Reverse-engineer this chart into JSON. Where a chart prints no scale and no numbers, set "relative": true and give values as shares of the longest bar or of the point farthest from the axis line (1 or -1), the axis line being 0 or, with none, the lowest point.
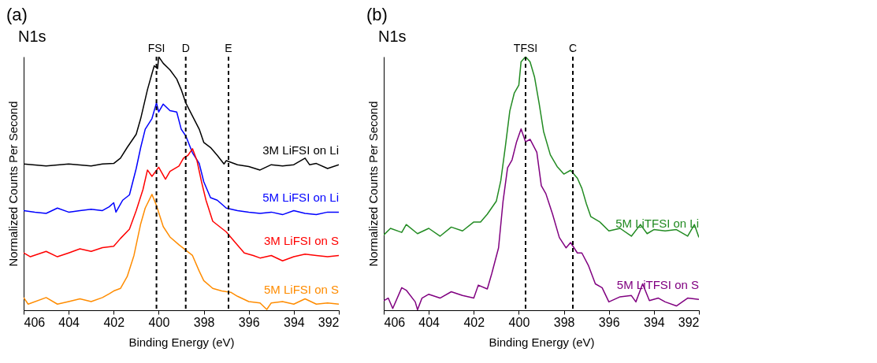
{
  "chart_data": [
    {
      "type": "line",
      "title": "N1s",
      "annotations": [
        "(a)"
      ],
      "xlabel": "Binding Energy (eV)",
      "ylabel": "Normalized Counts Per Second",
      "relative": true,
      "xlim": [
        406,
        392
      ],
      "xticks": [
        406,
        404,
        402,
        400,
        398,
        396,
        394,
        392
      ],
      "tick_labels": "x",
      "grid": false,
      "ref_lines": [
        {
          "axis": "x",
          "value": 400.1,
          "label": "FSI",
          "line_style": "dashed",
          "color": "#000000"
        },
        {
          "axis": "x",
          "value": 398.8,
          "label": "D",
          "line_style": "dashed",
          "color": "#000000"
        },
        {
          "axis": "x",
          "value": 396.9,
          "label": "E",
          "line_style": "dashed",
          "color": "#000000"
        }
      ],
      "series": [
        {
          "name": "3M LiFSI on Li",
          "color": "#000000",
          "x": [
            406,
            405,
            404,
            403,
            402.5,
            402,
            401.7,
            401.4,
            401,
            400.8,
            400.5,
            400.3,
            400.2,
            400.05,
            400,
            399.8,
            399.5,
            399.2,
            399,
            398.8,
            398.5,
            398.2,
            398,
            397.7,
            397.4,
            397.1,
            397,
            396.5,
            396,
            395.5,
            395,
            394.5,
            394,
            393.5,
            393.3,
            393,
            392.5,
            392
          ],
          "values": [
            0.577,
            0.569,
            0.577,
            0.569,
            0.577,
            0.579,
            0.6,
            0.642,
            0.694,
            0.756,
            0.87,
            0.933,
            0.964,
            0.953,
            1,
            0.974,
            0.948,
            0.912,
            0.87,
            0.818,
            0.766,
            0.714,
            0.662,
            0.642,
            0.611,
            0.577,
            0.59,
            0.574,
            0.567,
            0.553,
            0.574,
            0.569,
            0.574,
            0.6,
            0.574,
            0.579,
            0.559,
            0.574
          ]
        },
        {
          "name": "5M LiFSI on Li",
          "color": "#0000ff",
          "x": [
            406,
            405.5,
            405,
            404.5,
            404,
            403.5,
            403,
            402.5,
            402.2,
            402,
            401.9,
            401.6,
            401.3,
            401,
            400.8,
            400.6,
            400.3,
            400.1,
            400,
            399.8,
            399.5,
            399.2,
            399,
            398.8,
            398.5,
            398.2,
            398,
            397.7,
            397.4,
            397,
            396.5,
            396,
            395.5,
            395,
            394.5,
            394,
            393.5,
            393,
            392.5,
            392
          ],
          "values": [
            0.393,
            0.387,
            0.382,
            0.403,
            0.387,
            0.393,
            0.398,
            0.393,
            0.408,
            0.424,
            0.387,
            0.434,
            0.455,
            0.559,
            0.642,
            0.714,
            0.756,
            0.818,
            0.782,
            0.813,
            0.787,
            0.782,
            0.714,
            0.688,
            0.621,
            0.579,
            0.507,
            0.444,
            0.434,
            0.403,
            0.393,
            0.387,
            0.382,
            0.387,
            0.377,
            0.393,
            0.382,
            0.377,
            0.387,
            0.387
          ]
        },
        {
          "name": "3M LiFSI on S",
          "color": "#ff0000",
          "x": [
            406,
            405.7,
            405,
            404.5,
            404,
            403.5,
            403,
            402.5,
            402,
            401.7,
            401.3,
            401,
            400.7,
            400.5,
            400.3,
            400,
            399.7,
            399.5,
            399.1,
            398.9,
            398.7,
            398.5,
            398.3,
            398.1,
            397.9,
            397.6,
            397.3,
            397,
            396.6,
            396.2,
            395.8,
            395.5,
            395,
            394.5,
            394,
            393.5,
            393,
            392.5,
            392
          ],
          "values": [
            0.226,
            0.211,
            0.232,
            0.211,
            0.226,
            0.242,
            0.232,
            0.247,
            0.252,
            0.283,
            0.32,
            0.393,
            0.476,
            0.553,
            0.528,
            0.564,
            0.517,
            0.548,
            0.569,
            0.6,
            0.611,
            0.637,
            0.59,
            0.507,
            0.434,
            0.351,
            0.33,
            0.309,
            0.267,
            0.226,
            0.216,
            0.206,
            0.216,
            0.195,
            0.211,
            0.221,
            0.216,
            0.211,
            0.216
          ]
        },
        {
          "name": "5M LiFSI on S",
          "color": "#ff8c00",
          "x": [
            406,
            405.8,
            405,
            404.5,
            404,
            403.5,
            403,
            402.5,
            402.2,
            402,
            401.7,
            401.4,
            401.1,
            400.8,
            400.6,
            400.3,
            400.1,
            399.8,
            399.5,
            399.1,
            398.8,
            398.5,
            398.2,
            398,
            397.6,
            397.2,
            396.8,
            396.5,
            396,
            395.5,
            395.2,
            395,
            394.5,
            394,
            393.5,
            393,
            392.5,
            392
          ],
          "values": [
            0.05,
            0.024,
            0.05,
            0.024,
            0.034,
            0.045,
            0.034,
            0.05,
            0.065,
            0.076,
            0.086,
            0.133,
            0.216,
            0.341,
            0.403,
            0.457,
            0.413,
            0.33,
            0.289,
            0.258,
            0.237,
            0.216,
            0.154,
            0.117,
            0.086,
            0.076,
            0.071,
            0.055,
            0.034,
            0.029,
            0.003,
            0.029,
            0.034,
            0.024,
            0.045,
            0.024,
            0.029,
            0.024
          ]
        }
      ]
    },
    {
      "type": "line",
      "title": "N1s",
      "annotations": [
        "(b)"
      ],
      "xlabel": "Binding Energy (eV)",
      "ylabel": "Normalized Counts Per Second",
      "relative": true,
      "xlim": [
        406,
        392
      ],
      "xticks": [
        406,
        404,
        402,
        400,
        398,
        396,
        394,
        392
      ],
      "tick_labels": "x",
      "grid": false,
      "ref_lines": [
        {
          "axis": "x",
          "value": 399.7,
          "label": "TFSI",
          "line_style": "dashed",
          "color": "#000000"
        },
        {
          "axis": "x",
          "value": 397.6,
          "label": "C",
          "line_style": "dashed",
          "color": "#000000"
        }
      ],
      "series": [
        {
          "name": "5M LiTFSI on Li",
          "color": "#228b22",
          "x": [
            406,
            405.7,
            405.2,
            405,
            404.5,
            404,
            403.5,
            403,
            402.5,
            402,
            401.7,
            401.4,
            401,
            400.8,
            400.6,
            400.4,
            400.2,
            400,
            399.9,
            399.7,
            399.5,
            399.3,
            399.1,
            398.9,
            398.6,
            398.3,
            398,
            397.7,
            397.4,
            397.2,
            397,
            396.8,
            396.4,
            396,
            395.5,
            395,
            394.6,
            394.3,
            394,
            393.5,
            393,
            392.5,
            392.2,
            392
          ],
          "values": [
            0.297,
            0.323,
            0.307,
            0.338,
            0.302,
            0.323,
            0.292,
            0.328,
            0.313,
            0.348,
            0.348,
            0.379,
            0.43,
            0.511,
            0.644,
            0.786,
            0.857,
            0.888,
            0.98,
            1,
            0.98,
            0.919,
            0.817,
            0.705,
            0.613,
            0.567,
            0.537,
            0.552,
            0.521,
            0.481,
            0.42,
            0.369,
            0.348,
            0.313,
            0.323,
            0.292,
            0.338,
            0.302,
            0.318,
            0.313,
            0.318,
            0.292,
            0.338,
            0.287
          ]
        },
        {
          "name": "5M LiTFSI on S",
          "color": "#800080",
          "x": [
            406,
            405.8,
            405.6,
            405.2,
            405,
            404.6,
            404.5,
            404.3,
            404,
            403.5,
            403,
            402.5,
            402,
            401.8,
            401.4,
            401.2,
            400.9,
            400.7,
            400.5,
            400.3,
            400.1,
            399.9,
            399.7,
            399.5,
            399.2,
            399,
            398.8,
            398.5,
            398.2,
            397.9,
            397.7,
            397.4,
            397.2,
            396.9,
            396.6,
            396.3,
            396,
            395.5,
            395,
            394.8,
            394.5,
            394.2,
            393.8,
            393.5,
            393,
            392.5,
            392
          ],
          "values": [
            0.038,
            0.048,
            0.007,
            0.089,
            0.079,
            0.033,
            0.002,
            0.048,
            0.063,
            0.048,
            0.073,
            0.058,
            0.048,
            0.099,
            0.084,
            0.145,
            0.246,
            0.43,
            0.562,
            0.593,
            0.664,
            0.715,
            0.664,
            0.674,
            0.623,
            0.491,
            0.46,
            0.379,
            0.287,
            0.246,
            0.267,
            0.226,
            0.226,
            0.175,
            0.104,
            0.089,
            0.033,
            0.053,
            0.058,
            0.033,
            0.104,
            0.038,
            0.048,
            0.033,
            0.017,
            0.048,
            0.043
          ]
        }
      ]
    }
  ]
}
